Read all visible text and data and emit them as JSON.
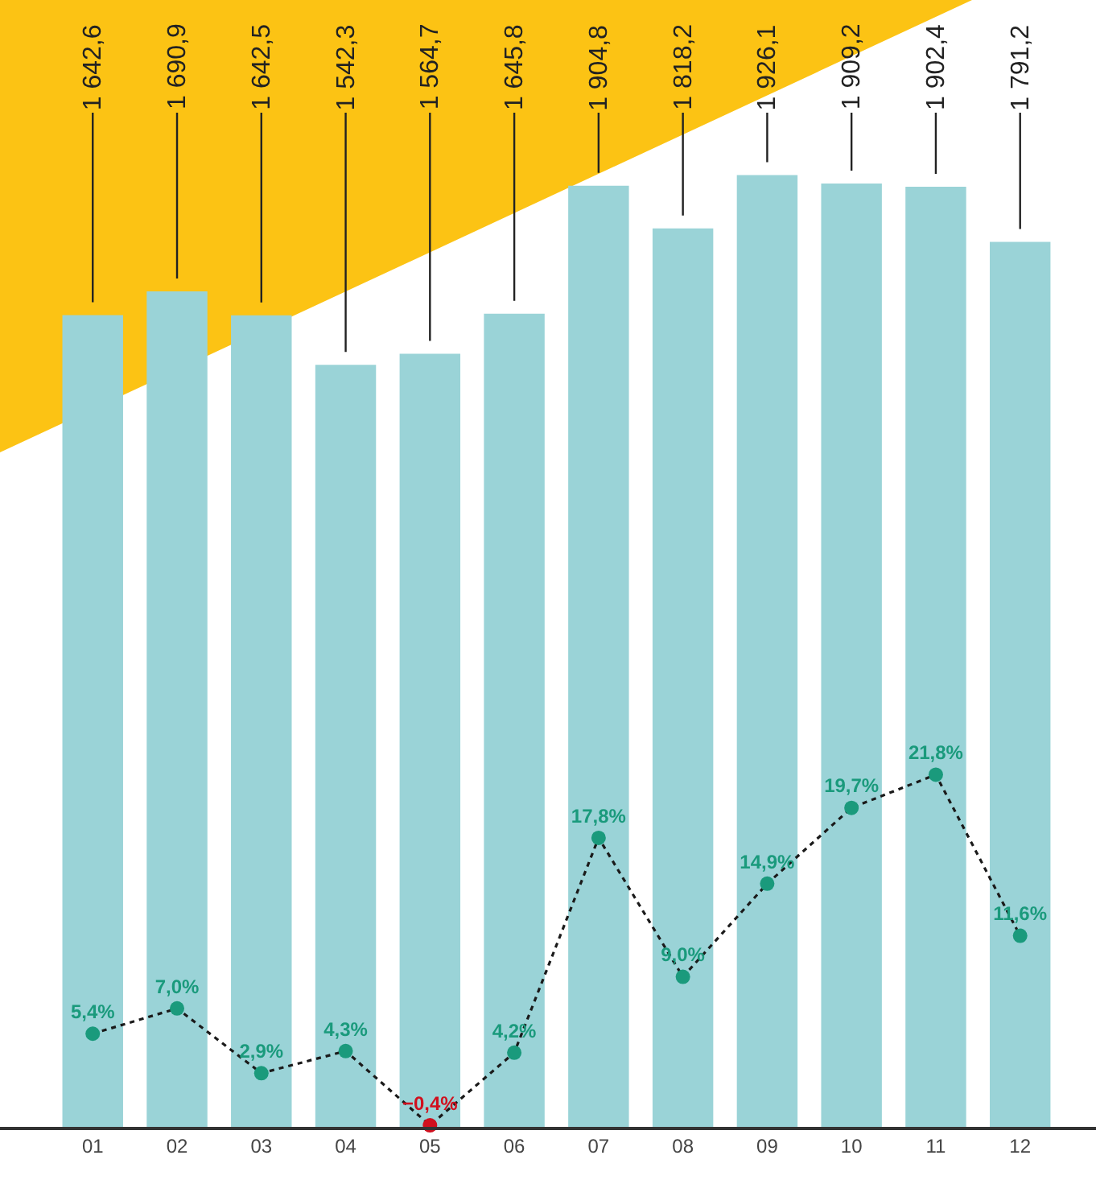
{
  "chart_data": {
    "type": "bar",
    "categories": [
      "01",
      "02",
      "03",
      "04",
      "05",
      "06",
      "07",
      "08",
      "09",
      "10",
      "11",
      "12"
    ],
    "series": [
      {
        "color": "#9ad3d7",
        "values": [
          1642.6,
          1690.9,
          1642.5,
          1542.3,
          1564.7,
          1645.8,
          1904.8,
          1818.2,
          1926.1,
          1909.2,
          1902.4,
          1791.2
        ],
        "value_labels": [
          "1 642,6",
          "1 690,9",
          "1 642,5",
          "1 542,3",
          "1 564,7",
          "1 645,8",
          "1 904,8",
          "1 818,2",
          "1 926,1",
          "1 909,2",
          "1 902,4",
          "1 791,2"
        ]
      },
      {
        "type": "line",
        "axis": "y2",
        "color": "#1a1a1a",
        "colors": [
          "#1a9a7c",
          "#1a9a7c",
          "#1a9a7c",
          "#1a9a7c",
          "#d0101e",
          "#1a9a7c",
          "#1a9a7c",
          "#1a9a7c",
          "#1a9a7c",
          "#1a9a7c",
          "#1a9a7c",
          "#1a9a7c"
        ],
        "values": [
          5.4,
          7.0,
          2.9,
          4.3,
          -0.4,
          4.2,
          17.8,
          9.0,
          14.9,
          19.7,
          21.8,
          11.6
        ],
        "value_labels": [
          "5,4%",
          "7,0%",
          "2,9%",
          "4,3%",
          "−0,4%",
          "4,2%",
          "17,8%",
          "9,0%",
          "14,9%",
          "19,7%",
          "21,8%",
          "11,6%"
        ]
      }
    ],
    "tick_labels": "x",
    "marker": "circle",
    "line_style": "dotted"
  }
}
